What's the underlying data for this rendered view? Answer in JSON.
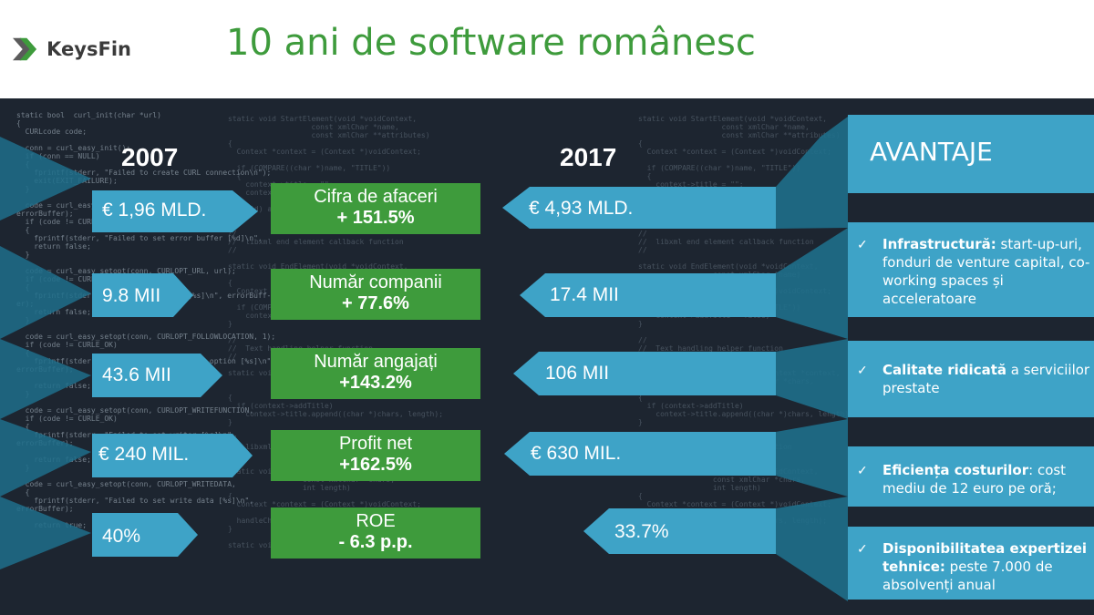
{
  "header": {
    "logo_text": "KeysFin",
    "title": "10 ani de software românesc"
  },
  "years": {
    "left": "2007",
    "right": "2017"
  },
  "rows": [
    {
      "left_value": "€ 1,96 MLD.",
      "metric": "Cifra de afaceri",
      "change": "+ 151.5%",
      "right_value": "€ 4,93 MLD."
    },
    {
      "left_value": "9.8 MII",
      "metric": "Număr companii",
      "change": "+ 77.6%",
      "right_value": "17.4 MII"
    },
    {
      "left_value": "43.6 MII",
      "metric": "Număr angajați",
      "change": "+143.2%",
      "right_value": "106 MII"
    },
    {
      "left_value": "€ 240 MIL.",
      "metric": "Profit net",
      "change": "+162.5%",
      "right_value": "€ 630 MIL."
    },
    {
      "left_value": "40%",
      "metric": "ROE",
      "change": "- 6.3 p.p.",
      "right_value": "33.7%"
    }
  ],
  "advantages": {
    "title": "AVANTAJE",
    "items": [
      {
        "bold": "Infrastructură:",
        "rest": " start-up-uri, fonduri de venture capital, co-working spaces și acceleratoare"
      },
      {
        "bold": "Calitate ridicată",
        "rest": " a serviciilor prestate"
      },
      {
        "bold": "Eficiența costurilor",
        "rest": ": cost mediu de 12 euro pe oră;"
      },
      {
        "bold": "Disponibilitatea expertizei tehnice:",
        "rest": " peste 7.000 de absolvenți anual"
      }
    ]
  },
  "icons": {
    "logo": "chevron-logo-icon",
    "check": "check-icon"
  },
  "colors": {
    "green": "#3e9b3c",
    "blue": "#3ea3c7",
    "dark_background": "#1d2530",
    "logo_green": "#3e9b3c"
  }
}
